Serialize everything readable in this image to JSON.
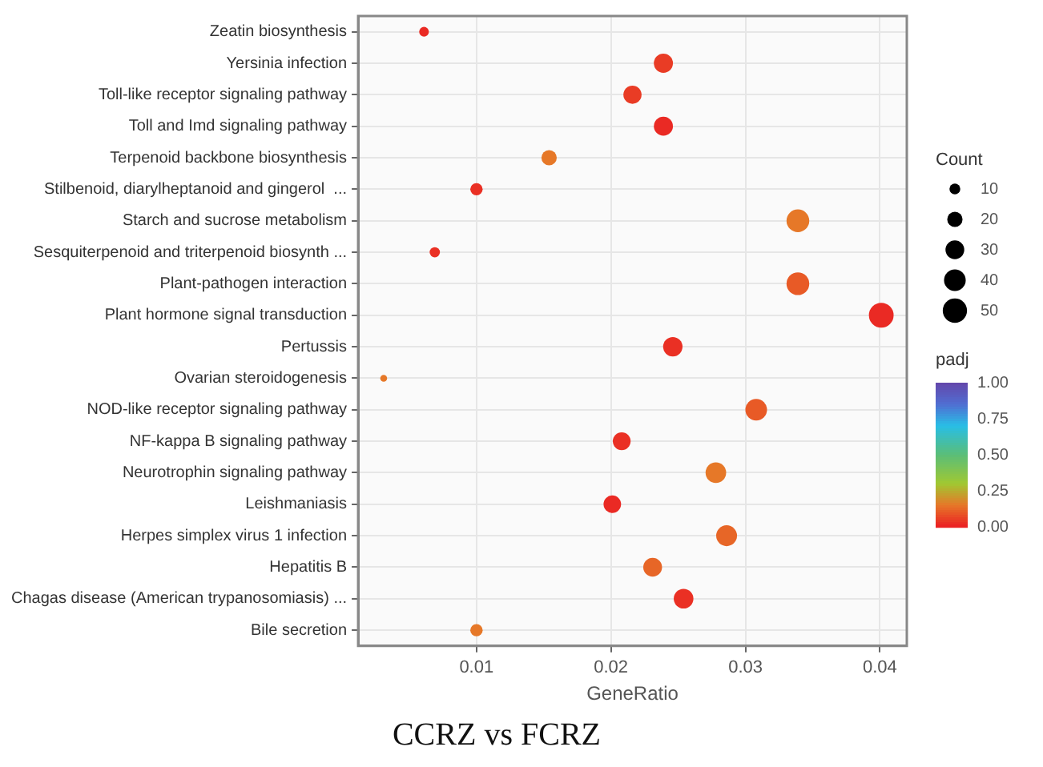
{
  "chart_data": {
    "type": "bubble",
    "orientation": "horizontal",
    "title": "CCRZ vs FCRZ",
    "xlabel": "GeneRatio",
    "legend_title": "Count",
    "clabel": "padj",
    "categories": [
      "Zeatin biosynthesis",
      "Yersinia infection",
      "Toll-like receptor signaling pathway",
      "Toll and Imd signaling pathway",
      "Terpenoid backbone biosynthesis",
      "Stilbenoid, diarylheptanoid and gingerol  ...",
      "Starch and sucrose metabolism",
      "Sesquiterpenoid and triterpenoid biosynth ...",
      "Plant-pathogen interaction",
      "Plant hormone signal transduction",
      "Pertussis",
      "Ovarian steroidogenesis",
      "NOD-like receptor signaling pathway",
      "NF-kappa B signaling pathway",
      "Neurotrophin signaling pathway",
      "Leishmaniasis",
      "Herpes simplex virus 1 infection",
      "Hepatitis B",
      "Chagas disease (American trypanosomiasis) ...",
      "Bile secretion"
    ],
    "values": [
      0.0061,
      0.0239,
      0.0216,
      0.0239,
      0.0154,
      0.01,
      0.0339,
      0.0069,
      0.0339,
      0.0401,
      0.0246,
      0.0031,
      0.0308,
      0.0208,
      0.0278,
      0.0201,
      0.0286,
      0.0231,
      0.0254,
      0.01
    ],
    "sizes": [
      8,
      31,
      28,
      31,
      20,
      13,
      44,
      9,
      44,
      52,
      32,
      4,
      40,
      27,
      36,
      26,
      37,
      30,
      33,
      13
    ],
    "cvalues": [
      0.02,
      0.05,
      0.05,
      0.02,
      0.15,
      0.03,
      0.15,
      0.03,
      0.1,
      0.02,
      0.03,
      0.15,
      0.1,
      0.03,
      0.15,
      0.02,
      0.12,
      0.12,
      0.03,
      0.15
    ],
    "size_legend": [
      10,
      20,
      30,
      40,
      50
    ],
    "clim": [
      0,
      1
    ],
    "cticks": [
      {
        "value": 0,
        "label": "0.00"
      },
      {
        "value": 0.25,
        "label": "0.25"
      },
      {
        "value": 0.5,
        "label": "0.50"
      },
      {
        "value": 0.75,
        "label": "0.75"
      },
      {
        "value": 1,
        "label": "1.00"
      }
    ],
    "xlim": [
      0.0012,
      0.042
    ],
    "xticks": [
      0.01,
      0.02,
      0.03,
      0.04
    ],
    "grid": true
  }
}
